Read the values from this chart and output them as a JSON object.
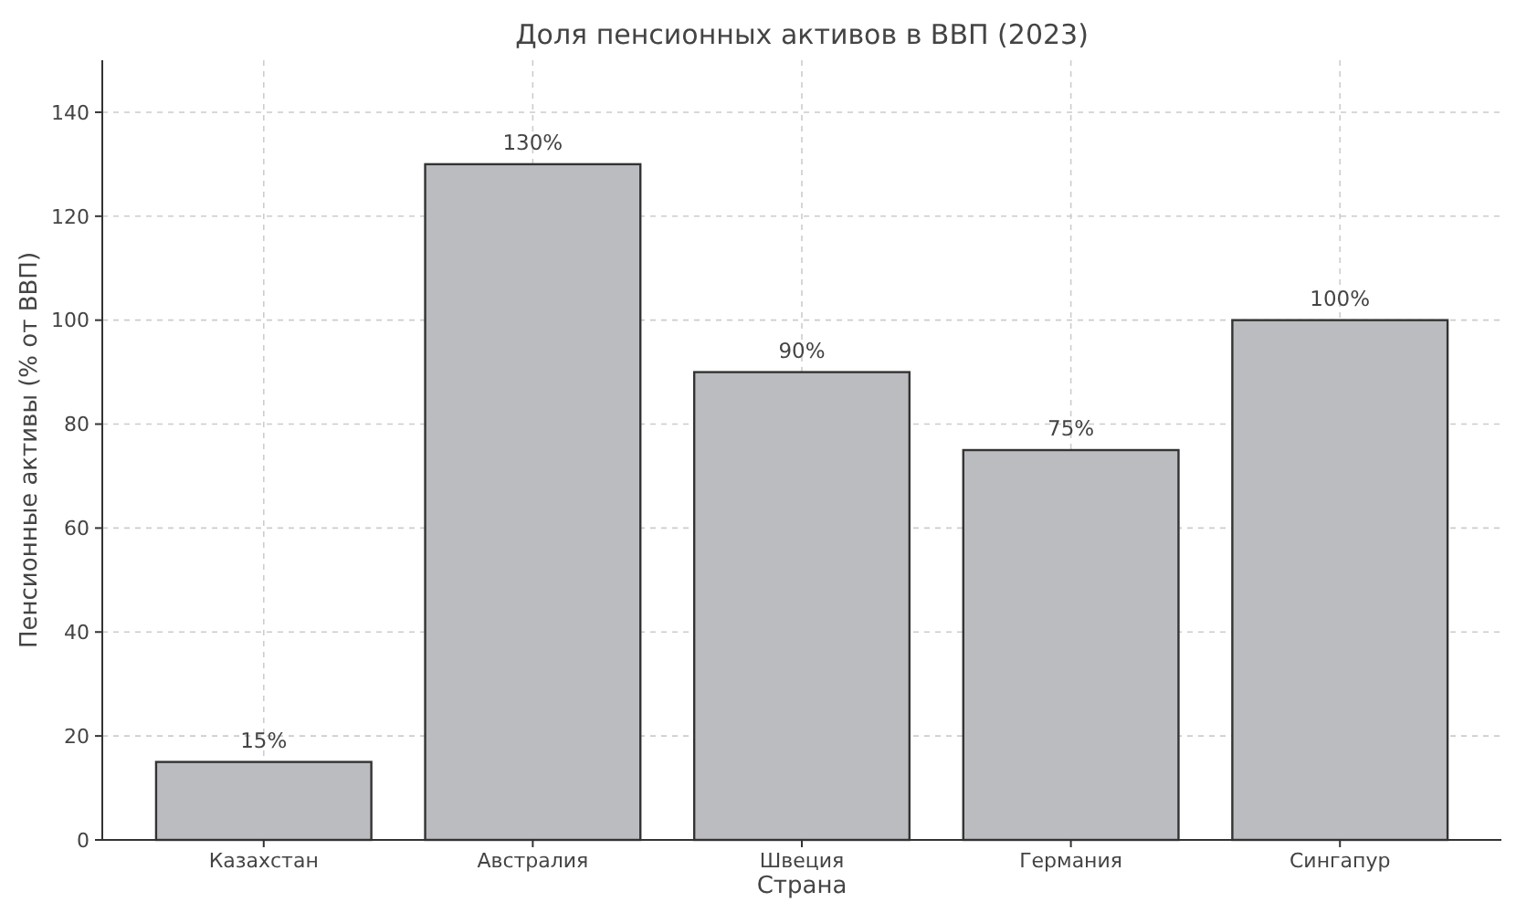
{
  "chart_data": {
    "type": "bar",
    "title": "Доля пенсионных активов в ВВП (2023)",
    "xlabel": "Страна",
    "ylabel": "Пенсионные активы (% от ВВП)",
    "categories": [
      "Казахстан",
      "Австралия",
      "Швеция",
      "Германия",
      "Сингапур"
    ],
    "values": [
      15,
      130,
      90,
      75,
      100
    ],
    "color": "#bbbcc0",
    "value_labels": [
      "15%",
      "130%",
      "90%",
      "75%",
      "100%"
    ],
    "ylim": [
      0,
      150
    ],
    "yticks": [
      0,
      20,
      40,
      60,
      80,
      100,
      120,
      140
    ],
    "grid": true
  }
}
